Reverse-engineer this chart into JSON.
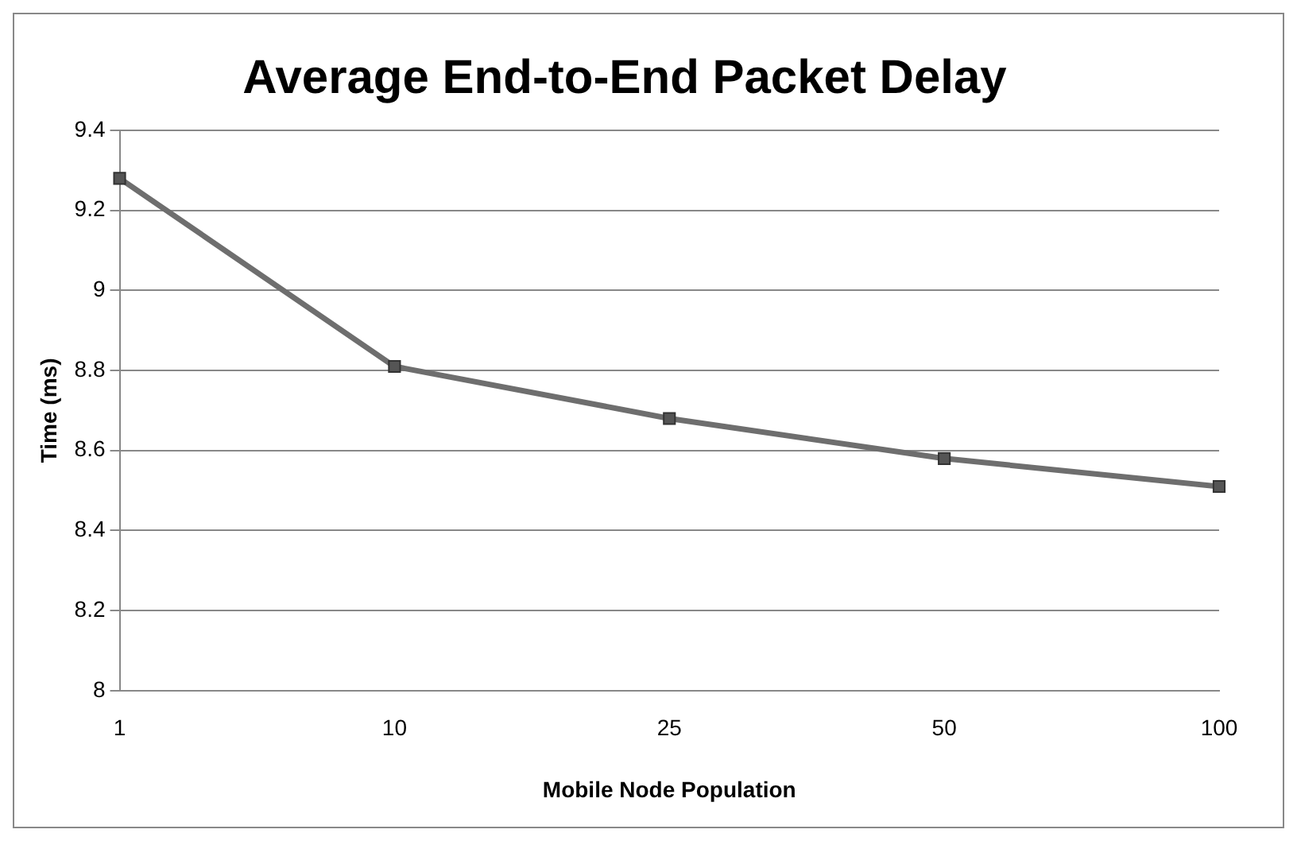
{
  "chart_data": {
    "type": "line",
    "title": "Average End-to-End Packet Delay",
    "xlabel": "Mobile Node Population",
    "ylabel": "Time (ms)",
    "categories": [
      "1",
      "10",
      "25",
      "50",
      "100"
    ],
    "series": [
      {
        "color": "#6e6e6e",
        "values": [
          9.28,
          8.81,
          8.68,
          8.58,
          8.51
        ]
      }
    ],
    "ylim": [
      8,
      9.4
    ],
    "yticks": [
      8,
      8.2,
      8.4,
      8.6,
      8.8,
      9,
      9.2,
      9.4
    ],
    "grid": "y",
    "legend": false,
    "marker": "square",
    "line_style": "solid"
  }
}
